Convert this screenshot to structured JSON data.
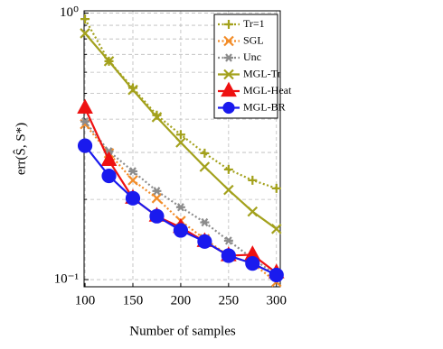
{
  "chart_data": {
    "type": "line",
    "x_label": "Number of samples",
    "y_label": "err(Ŝ, S*)",
    "x": [
      100,
      125,
      150,
      175,
      200,
      225,
      250,
      275,
      300
    ],
    "xlim": [
      99,
      304
    ],
    "xticks": [
      100,
      150,
      200,
      250,
      300
    ],
    "ylim": [
      0.094,
      1.02
    ],
    "log_y": true,
    "yticks": [
      {
        "value": 1,
        "label": "10⁰"
      },
      {
        "value": 0.1,
        "label": "10⁻¹"
      }
    ],
    "minor_yticks": [
      0.2,
      0.3,
      0.4,
      0.5,
      0.6,
      0.7,
      0.8,
      0.9
    ],
    "grid": true,
    "legend": "upper right",
    "series": [
      {
        "name": "Tr=1",
        "color": "#a3a11c",
        "dash": true,
        "marker": "plus",
        "values": [
          0.95,
          0.66,
          0.524,
          0.414,
          0.35,
          0.298,
          0.259,
          0.236,
          0.22
        ]
      },
      {
        "name": "SGL",
        "color": "#f28c28",
        "dash": true,
        "marker": "cross",
        "values": [
          0.383,
          0.298,
          0.236,
          0.202,
          0.166,
          0.142,
          0.123,
          0.115,
          0.098
        ]
      },
      {
        "name": "Unc",
        "color": "#8c8c8c",
        "dash": true,
        "marker": "star",
        "values": [
          0.392,
          0.303,
          0.255,
          0.215,
          0.187,
          0.164,
          0.14,
          0.12,
          0.104
        ]
      },
      {
        "name": "MGL-Tr",
        "color": "#a3a11c",
        "dash": false,
        "marker": "cross",
        "values": [
          0.84,
          0.66,
          0.515,
          0.407,
          0.327,
          0.265,
          0.217,
          0.18,
          0.155
        ]
      },
      {
        "name": "MGL-Heat",
        "color": "#ee1111",
        "dash": false,
        "marker": "triangle",
        "values": [
          0.44,
          0.28,
          0.202,
          0.173,
          0.157,
          0.139,
          0.123,
          0.124,
          0.106
        ]
      },
      {
        "name": "MGL-BR",
        "color": "#1a1aee",
        "dash": false,
        "marker": "circle",
        "values": [
          0.318,
          0.245,
          0.202,
          0.173,
          0.153,
          0.139,
          0.123,
          0.115,
          0.104
        ]
      }
    ]
  }
}
